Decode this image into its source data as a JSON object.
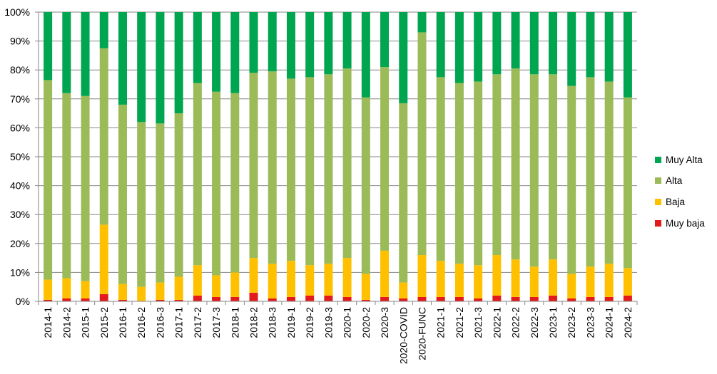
{
  "chart_data": {
    "type": "bar",
    "stacked": true,
    "normalized": true,
    "categories": [
      "2014-1",
      "2014-2",
      "2015-1",
      "2015-2",
      "2016-1",
      "2016-2",
      "2016-3",
      "2017-1",
      "2017-2",
      "2017-3",
      "2018-1",
      "2018-2",
      "2018-3",
      "2019-1",
      "2019-2",
      "2019-3",
      "2020-1",
      "2020-2",
      "2020-3",
      "2020-COVID",
      "2020-FUNC",
      "2021-1",
      "2021-2",
      "2021-3",
      "2022-1",
      "2022-2",
      "2022-3",
      "2023-1",
      "2023-2",
      "2023-3",
      "2024-1",
      "2024-2"
    ],
    "series": [
      {
        "name": "Muy baja",
        "color": "#e31a1c",
        "values": [
          0.5,
          1,
          1,
          2.5,
          0.5,
          0,
          0.5,
          0.5,
          2,
          1.5,
          1.5,
          3,
          1,
          1.5,
          2,
          2,
          1.5,
          0.5,
          1.5,
          1,
          1.5,
          1.5,
          1.5,
          1,
          2,
          1.5,
          1.5,
          2,
          1,
          1.5,
          1.5,
          2
        ]
      },
      {
        "name": "Baja",
        "color": "#ffc000",
        "values": [
          7,
          7,
          6,
          24,
          5.5,
          5,
          6,
          8,
          10.5,
          7.5,
          8.5,
          12,
          12,
          12.5,
          10.5,
          11,
          13.5,
          9,
          16,
          5.5,
          14.5,
          12.5,
          11.5,
          11.5,
          14,
          13,
          10.5,
          12.5,
          8.5,
          10.5,
          11.5,
          9.5
        ]
      },
      {
        "name": "Alta",
        "color": "#9bbb59",
        "values": [
          69,
          64,
          64,
          61,
          62,
          57,
          55,
          56.5,
          63,
          63.5,
          62,
          64,
          66.5,
          63,
          65,
          65.5,
          65.5,
          61,
          63.5,
          62,
          77,
          63.5,
          62.5,
          63.5,
          62.5,
          66,
          66.5,
          64,
          65,
          65.5,
          63,
          59
        ]
      },
      {
        "name": "Muy Alta",
        "color": "#00a550",
        "values": [
          23.5,
          28,
          29,
          12.5,
          32,
          38,
          38.5,
          35,
          24.5,
          27.5,
          28,
          21,
          20.5,
          23,
          22.5,
          21.5,
          19.5,
          29.5,
          19,
          31.5,
          7,
          22.5,
          24.5,
          24,
          21.5,
          19.5,
          21.5,
          21.5,
          25.5,
          22.5,
          24,
          29.5
        ]
      }
    ],
    "y_tick_labels": [
      "0%",
      "10%",
      "20%",
      "30%",
      "40%",
      "50%",
      "60%",
      "70%",
      "80%",
      "90%",
      "100%"
    ],
    "ylim": [
      0,
      100
    ],
    "title": "",
    "xlabel": "",
    "ylabel": "",
    "grid": true,
    "legend_position": "right"
  },
  "legend": {
    "items": [
      {
        "label": "Muy Alta",
        "color": "#00a550"
      },
      {
        "label": "Alta",
        "color": "#9bbb59"
      },
      {
        "label": "Baja",
        "color": "#ffc000"
      },
      {
        "label": "Muy baja",
        "color": "#e31a1c"
      }
    ]
  }
}
